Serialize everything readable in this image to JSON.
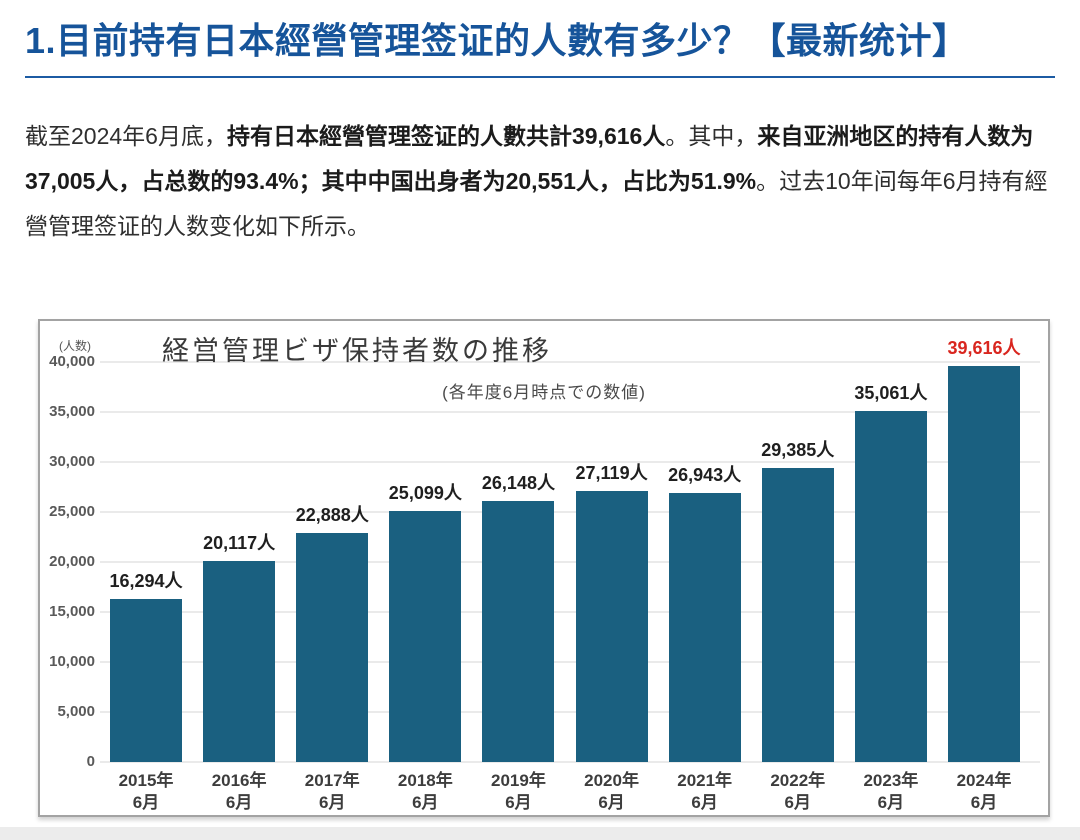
{
  "heading": {
    "title": "1.目前持有日本經營管理签证的人數有多少？【最新统计】"
  },
  "intro": {
    "part1": "截至2024年6月底，",
    "part2": "持有日本經營管理签证的人數共計39,616人",
    "part3": "。其中，",
    "part4": "来自亚洲地区的持有人数为37,005人，占总数的93.4%；其中中国出身者为20,551人，占比为51.9%",
    "part5": "。过去10年间每年6月持有經營管理签证的人数变化如下所示。"
  },
  "chart": {
    "title": "経営管理ビザ保持者数の推移",
    "subtitle": "(各年度6月時点での数値)",
    "unit": "(人数)"
  },
  "chart_data": {
    "type": "bar",
    "title": "経営管理ビザ保持者数の推移",
    "subtitle": "(各年度6月時点での数値)",
    "unit_label": "(人数)",
    "categories": [
      "2015年 6月",
      "2016年 6月",
      "2017年 6月",
      "2018年 6月",
      "2019年 6月",
      "2020年 6月",
      "2021年 6月",
      "2022年 6月",
      "2023年 6月",
      "2024年 6月"
    ],
    "values": [
      16294,
      20117,
      22888,
      25099,
      26148,
      27119,
      26943,
      29385,
      35061,
      39616
    ],
    "data_labels": [
      "16,294人",
      "20,117人",
      "22,888人",
      "25,099人",
      "26,148人",
      "27,119人",
      "26,943人",
      "29,385人",
      "35,061人",
      "39,616人"
    ],
    "yticks": [
      0,
      5000,
      10000,
      15000,
      20000,
      25000,
      30000,
      35000,
      40000
    ],
    "ytick_labels": [
      "0",
      "5,000",
      "10,000",
      "15,000",
      "20,000",
      "25,000",
      "30,000",
      "35,000",
      "40,000"
    ],
    "ylim": [
      0,
      40000
    ],
    "grid": true,
    "legend": "none",
    "bar_color": "#1a6080",
    "label_color": "#1f1f1f",
    "highlight_index": 9,
    "highlight_color": "#d9261f",
    "heading_color": "#16549a"
  }
}
